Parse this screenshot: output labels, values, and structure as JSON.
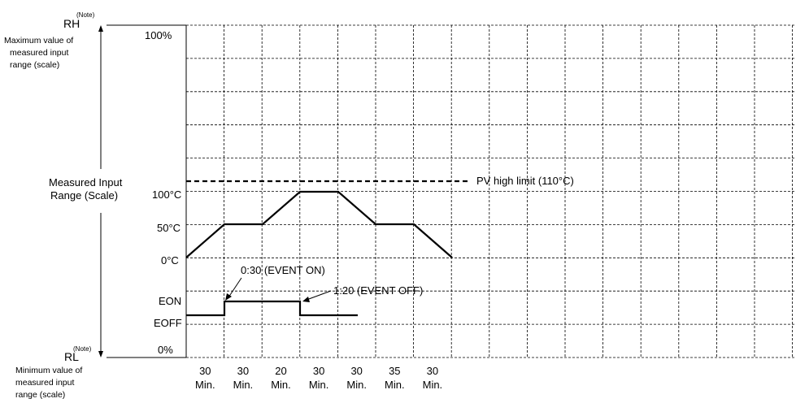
{
  "scale": {
    "rh": "RH",
    "rh_note": "(Note)",
    "rh_desc": [
      "Maximum value of",
      "measured input",
      "range (scale)"
    ],
    "rl": "RL",
    "rl_note": "(Note)",
    "rl_desc": [
      "Minimum value of",
      "measured input",
      "range (scale)"
    ],
    "range_label": [
      "Measured Input",
      "Range (Scale)"
    ]
  },
  "y_labels": {
    "top": "100%",
    "bottom": "0%",
    "temp_100": "100°C",
    "temp_50": "50°C",
    "temp_0": "0°C",
    "eon": "EON",
    "eoff": "EOFF"
  },
  "annotations": {
    "pv_limit": "PV high limit (110°C)",
    "event_on": "0:30 (EVENT ON)",
    "event_off": "1:20 (EVENT OFF)"
  },
  "segments": [
    {
      "minutes": "30",
      "unit": "Min."
    },
    {
      "minutes": "30",
      "unit": "Min."
    },
    {
      "minutes": "20",
      "unit": "Min."
    },
    {
      "minutes": "30",
      "unit": "Min."
    },
    {
      "minutes": "30",
      "unit": "Min."
    },
    {
      "minutes": "35",
      "unit": "Min."
    },
    {
      "minutes": "30",
      "unit": "Min."
    }
  ],
  "profile": {
    "temperature_setpoints_c": [
      0,
      50,
      50,
      100,
      100,
      50,
      50,
      0
    ],
    "pv_high_limit_c": 110,
    "event_states": [
      "EOFF",
      "EON",
      "EON",
      "EOFF",
      "EOFF"
    ]
  }
}
